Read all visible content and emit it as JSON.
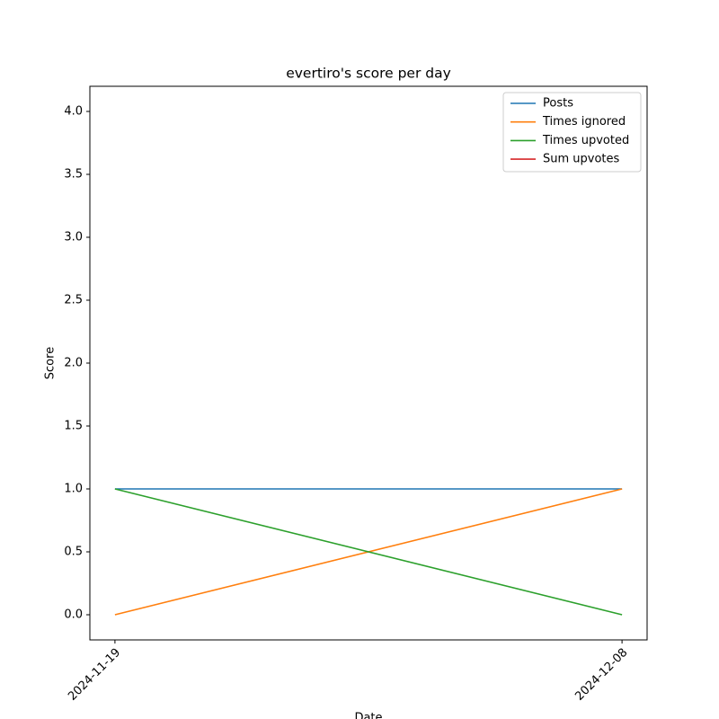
{
  "chart_data": {
    "type": "line",
    "title": "evertiro's score per day",
    "x_label": "Date",
    "y_label": "Score",
    "categories": [
      "2024-11-19",
      "2024-12-08"
    ],
    "series": [
      {
        "name": "Posts",
        "color": "#1f77b4",
        "values": [
          1,
          1
        ]
      },
      {
        "name": "Times ignored",
        "color": "#ff7f0e",
        "values": [
          0,
          1
        ]
      },
      {
        "name": "Times upvoted",
        "color": "#2ca02c",
        "values": [
          1,
          0
        ]
      },
      {
        "name": "Sum upvotes",
        "color": "#d62728",
        "values": [
          null,
          null
        ]
      }
    ],
    "ylim": [
      -0.2,
      4.2
    ],
    "yticks": [
      {
        "value": 0,
        "label": "0.0"
      },
      0.5,
      {
        "value": 1,
        "label": "1.0"
      },
      1.5,
      {
        "value": 2,
        "label": "2.0"
      },
      2.5,
      {
        "value": 3,
        "label": "3.0"
      },
      3.5,
      {
        "value": 4,
        "label": "4.0"
      }
    ],
    "legend": "upper right"
  }
}
